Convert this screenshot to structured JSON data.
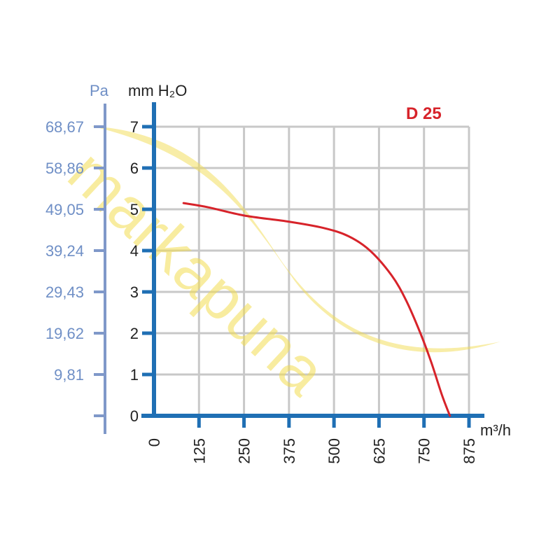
{
  "chart_data": {
    "type": "line",
    "title": "D 25",
    "watermark": "markapuna",
    "xlabel": "m³/h",
    "ylabel": "mm H₂O",
    "y2label": "Pa",
    "xlim": [
      0,
      875
    ],
    "ylim": [
      0,
      7
    ],
    "x_ticks": [
      "0",
      "125",
      "250",
      "375",
      "500",
      "625",
      "750",
      "875"
    ],
    "y_ticks": [
      "0",
      "1",
      "2",
      "3",
      "4",
      "5",
      "6",
      "7"
    ],
    "pa_ticks": [
      "9,81",
      "19,62",
      "29,43",
      "39,24",
      "49,05",
      "58,86",
      "68,67"
    ],
    "grid": true,
    "series": [
      {
        "color": "#d7232a",
        "x": [
          82,
          150,
          250,
          375,
          470,
          540,
          600,
          660,
          700,
          740,
          770,
          800,
          822
        ],
        "y": [
          5.15,
          5.05,
          4.85,
          4.7,
          4.55,
          4.35,
          4.0,
          3.4,
          2.8,
          2.0,
          1.3,
          0.5,
          0.0
        ]
      }
    ]
  }
}
